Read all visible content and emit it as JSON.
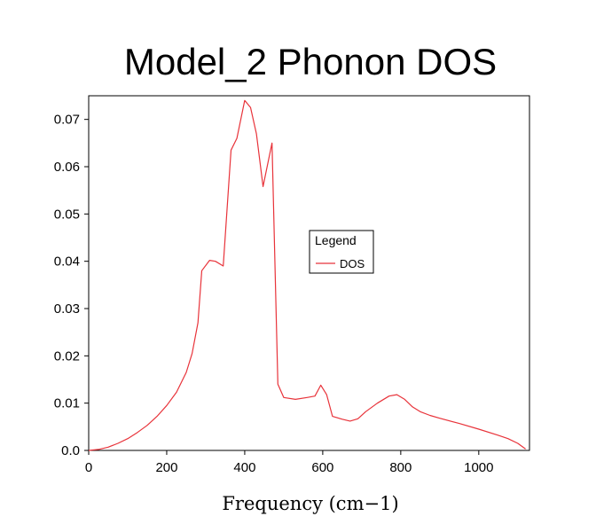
{
  "chart_data": {
    "type": "line",
    "title": "Model_2 Phonon DOS",
    "xlabel": "Frequency (cm−1)",
    "ylabel": "",
    "xlim": [
      0,
      1130
    ],
    "ylim": [
      0,
      0.075
    ],
    "xticks": [
      0,
      200,
      400,
      600,
      800,
      1000
    ],
    "xtick_labels": [
      "0",
      "200",
      "400",
      "600",
      "800",
      "1000"
    ],
    "yticks": [
      0,
      0.01,
      0.02,
      0.03,
      0.04,
      0.05,
      0.06,
      0.07
    ],
    "ytick_labels": [
      "0.0",
      "0.01",
      "0.02",
      "0.03",
      "0.04",
      "0.05",
      "0.06",
      "0.07"
    ],
    "grid": false,
    "legend": {
      "title": "Legend",
      "position": "center-right"
    },
    "series": [
      {
        "name": "DOS",
        "color": "#e8333a",
        "x": [
          0,
          25,
          50,
          75,
          100,
          125,
          150,
          175,
          200,
          225,
          250,
          265,
          280,
          290,
          310,
          325,
          345,
          365,
          380,
          400,
          415,
          430,
          447,
          470,
          485,
          500,
          530,
          560,
          580,
          595,
          610,
          625,
          650,
          670,
          690,
          710,
          740,
          770,
          790,
          810,
          830,
          850,
          875,
          900,
          950,
          1000,
          1050,
          1075,
          1100,
          1120
        ],
        "y": [
          0.0,
          0.0002,
          0.0007,
          0.0015,
          0.0025,
          0.0038,
          0.0053,
          0.0072,
          0.0095,
          0.0123,
          0.0165,
          0.0205,
          0.027,
          0.038,
          0.0402,
          0.04,
          0.039,
          0.0635,
          0.066,
          0.074,
          0.0725,
          0.067,
          0.0558,
          0.065,
          0.014,
          0.0112,
          0.0108,
          0.0112,
          0.0115,
          0.0138,
          0.0118,
          0.0072,
          0.0066,
          0.0062,
          0.0067,
          0.0082,
          0.01,
          0.0115,
          0.0118,
          0.0108,
          0.0092,
          0.0082,
          0.0074,
          0.0068,
          0.0057,
          0.0045,
          0.0032,
          0.0025,
          0.0015,
          0.0003
        ]
      }
    ]
  }
}
